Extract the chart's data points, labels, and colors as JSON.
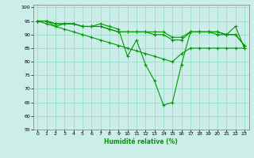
{
  "x": [
    0,
    1,
    2,
    3,
    4,
    5,
    6,
    7,
    8,
    9,
    10,
    11,
    12,
    13,
    14,
    15,
    16,
    17,
    18,
    19,
    20,
    21,
    22,
    23
  ],
  "line1": [
    95,
    95,
    93,
    94,
    94,
    93,
    93,
    94,
    93,
    92,
    82,
    88,
    79,
    73,
    64,
    65,
    79,
    91,
    91,
    91,
    90,
    90,
    93,
    85
  ],
  "line2": [
    95,
    95,
    94,
    94,
    94,
    93,
    93,
    93,
    92,
    91,
    91,
    91,
    91,
    90,
    90,
    88,
    88,
    91,
    91,
    91,
    91,
    90,
    90,
    86
  ],
  "line3": [
    95,
    95,
    94,
    94,
    94,
    93,
    93,
    93,
    92,
    91,
    91,
    91,
    91,
    91,
    91,
    89,
    89,
    91,
    91,
    91,
    91,
    90,
    90,
    86
  ],
  "line4": [
    95,
    94,
    93,
    92,
    91,
    90,
    89,
    88,
    87,
    86,
    85,
    84,
    83,
    82,
    81,
    80,
    83,
    85,
    85,
    85,
    85,
    85,
    85,
    85
  ],
  "bg_color": "#cceee8",
  "grid_color": "#99ddcc",
  "line_color": "#009900",
  "marker": "+",
  "xlabel": "Humidité relative (%)",
  "ylim": [
    55,
    101
  ],
  "xlim": [
    -0.5,
    23.5
  ],
  "yticks": [
    55,
    60,
    65,
    70,
    75,
    80,
    85,
    90,
    95,
    100
  ],
  "xticks": [
    0,
    1,
    2,
    3,
    4,
    5,
    6,
    7,
    8,
    9,
    10,
    11,
    12,
    13,
    14,
    15,
    16,
    17,
    18,
    19,
    20,
    21,
    22,
    23
  ]
}
